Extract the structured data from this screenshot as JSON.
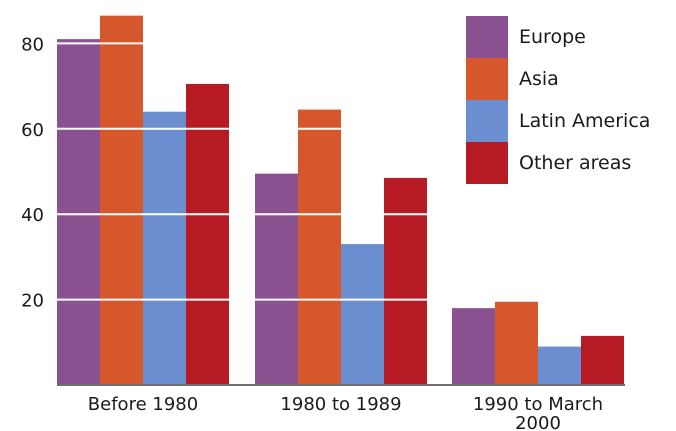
{
  "chart_data": {
    "type": "bar",
    "title": "",
    "xlabel": "",
    "ylabel": "",
    "ylim": [
      0,
      85
    ],
    "yticks": [
      20,
      40,
      60,
      80
    ],
    "grid": "horizontal white lines over bars",
    "legend_position": "top-right",
    "categories": [
      "Before 1980",
      "1980 to 1989",
      "1990 to March 2000"
    ],
    "category_label_lines": [
      [
        "Before 1980"
      ],
      [
        "1980 to 1989"
      ],
      [
        "1990 to March",
        "2000"
      ]
    ],
    "series": [
      {
        "name": "Europe",
        "color": "#8a5191",
        "values": [
          81,
          49.5,
          18
        ]
      },
      {
        "name": "Asia",
        "color": "#d6572b",
        "values": [
          86.5,
          64.5,
          19.5
        ]
      },
      {
        "name": "Latin America",
        "color": "#6b8ed0",
        "values": [
          64,
          33,
          9
        ]
      },
      {
        "name": "Other areas",
        "color": "#b61b23",
        "values": [
          70.5,
          48.5,
          11.5
        ]
      }
    ]
  }
}
